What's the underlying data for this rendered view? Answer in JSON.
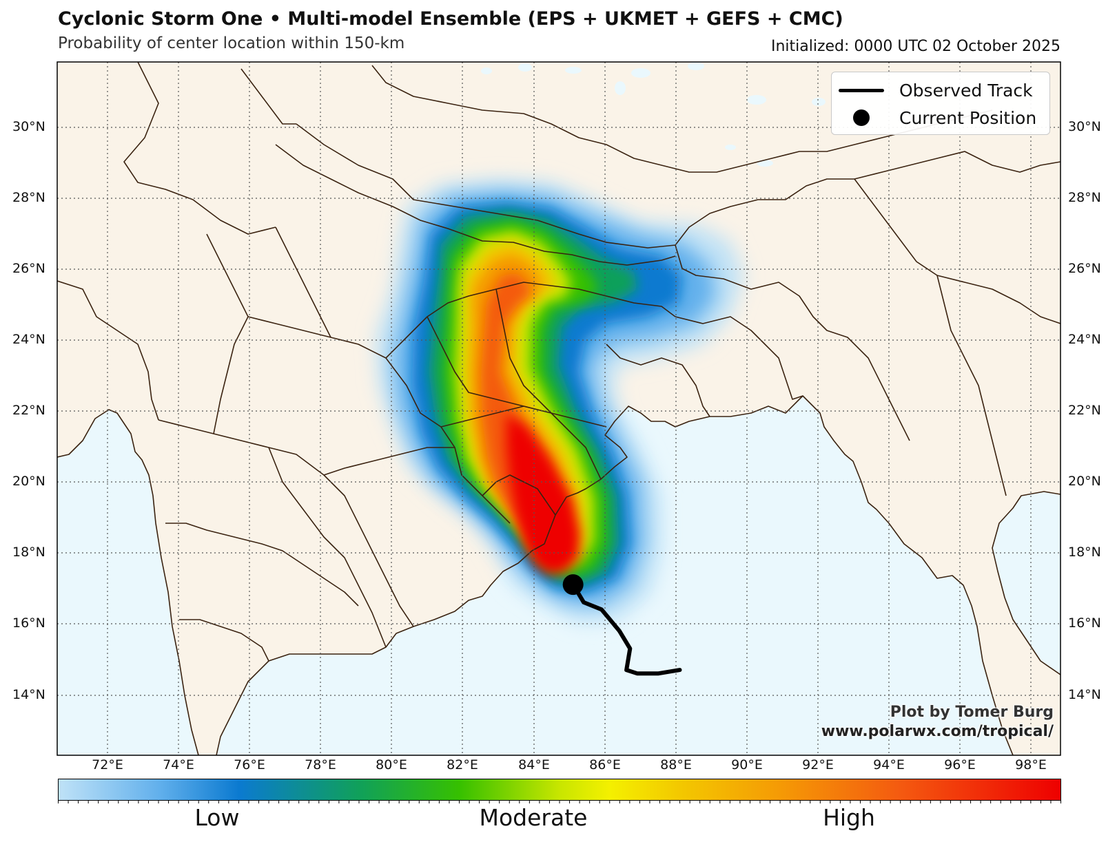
{
  "title": "Cyclonic Storm One • Multi-model Ensemble (EPS + UKMET + GEFS + CMC)",
  "subtitle": "Probability of center location within 150-km",
  "initialized": "Initialized: 0000 UTC 02 October 2025",
  "legend": {
    "track_label": "Observed Track",
    "position_label": "Current Position"
  },
  "credit": {
    "line1": "Plot by Tomer Burg",
    "line2": "www.polarwx.com/tropical/"
  },
  "map": {
    "lon_range": [
      70.7,
      98.9
    ],
    "lat_range": [
      12.4,
      31.9
    ],
    "land_color": "#faf3e8",
    "ocean_color": "#eaf8fd",
    "boundary_color": "#3a2210",
    "lat_ticks": [
      "14°N",
      "16°N",
      "18°N",
      "20°N",
      "22°N",
      "24°N",
      "26°N",
      "28°N",
      "30°N"
    ],
    "lon_ticks": [
      "72°E",
      "74°E",
      "76°E",
      "78°E",
      "80°E",
      "82°E",
      "84°E",
      "86°E",
      "88°E",
      "90°E",
      "92°E",
      "94°E",
      "96°E",
      "98°E"
    ]
  },
  "observed_track": [
    {
      "lon": 88.2,
      "lat": 14.8
    },
    {
      "lon": 87.6,
      "lat": 14.7
    },
    {
      "lon": 87.0,
      "lat": 14.7
    },
    {
      "lon": 86.7,
      "lat": 14.8
    },
    {
      "lon": 86.8,
      "lat": 15.4
    },
    {
      "lon": 86.5,
      "lat": 15.9
    },
    {
      "lon": 86.0,
      "lat": 16.5
    },
    {
      "lon": 85.5,
      "lat": 16.7
    },
    {
      "lon": 85.2,
      "lat": 17.2
    }
  ],
  "current_position": {
    "lon": 85.2,
    "lat": 17.2
  },
  "colorbar": {
    "labels": [
      "Low",
      "Moderate",
      "High"
    ],
    "colors": [
      "#bfe2f7",
      "#0b7ad0",
      "#36c000",
      "#f4f000",
      "#f59a05",
      "#ee0000"
    ]
  }
}
